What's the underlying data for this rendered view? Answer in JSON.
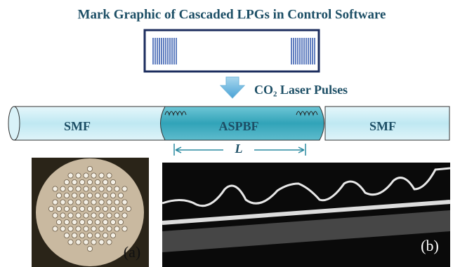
{
  "header": {
    "title": "Mark Graphic of Cascaded LPGs in Control Software"
  },
  "laser": {
    "label": "CO₂ Laser Pulses"
  },
  "fiber": {
    "segments": [
      {
        "label": "SMF"
      },
      {
        "label": "ASPBF"
      },
      {
        "label": "SMF"
      }
    ],
    "length_label": "L"
  },
  "panels": [
    {
      "label": "(a)"
    },
    {
      "label": "(b)"
    }
  ]
}
